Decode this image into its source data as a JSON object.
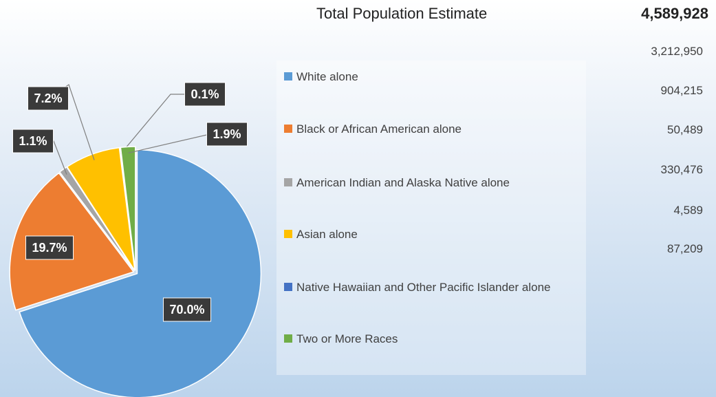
{
  "chart_data": {
    "type": "pie",
    "categories": [
      "White alone",
      "Black or African American alone",
      "American Indian and Alaska Native alone",
      "Asian alone",
      "Native Hawaiian and Other Pacific Islander alone",
      "Two or More Races"
    ],
    "values": [
      70.0,
      19.7,
      1.1,
      7.2,
      0.1,
      1.9
    ],
    "value_labels": [
      "70.0%",
      "19.7%",
      "1.1%",
      "7.2%",
      "0.1%",
      "1.9%"
    ],
    "colors": [
      "#5b9bd5",
      "#ed7d31",
      "#a5a5a5",
      "#ffc000",
      "#4472c4",
      "#70ad47"
    ]
  },
  "population": {
    "title": "Total Population Estimate",
    "total": "4,589,928",
    "counts": [
      "3,212,950",
      "904,215",
      "50,489",
      "330,476",
      "4,589",
      "87,209"
    ]
  }
}
